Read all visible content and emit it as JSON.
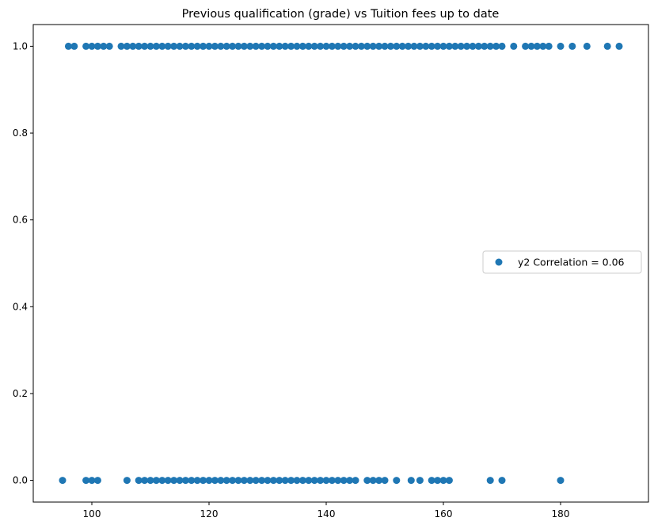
{
  "chart_data": {
    "type": "scatter",
    "title": "Previous qualification (grade) vs Tuition fees up to date",
    "xlabel": "",
    "ylabel": "",
    "xlim": [
      90,
      195
    ],
    "ylim": [
      -0.05,
      1.05
    ],
    "x_ticks": [
      100,
      120,
      140,
      160,
      180
    ],
    "y_ticks": [
      0.0,
      0.2,
      0.4,
      0.6,
      0.8,
      1.0
    ],
    "x_tick_labels": [
      "100",
      "120",
      "140",
      "160",
      "180"
    ],
    "y_tick_labels": [
      "0.0",
      "0.2",
      "0.4",
      "0.6",
      "0.8",
      "1.0"
    ],
    "grid": false,
    "legend": {
      "placement": "center-right"
    },
    "series": [
      {
        "name": "y2 Correlation = 0.06",
        "color": "#1f77b4",
        "points_y1_x": [
          96,
          97,
          99,
          100,
          101,
          102,
          103,
          105,
          106,
          107,
          108,
          109,
          110,
          111,
          112,
          113,
          114,
          115,
          116,
          117,
          118,
          119,
          120,
          121,
          122,
          123,
          124,
          125,
          126,
          127,
          128,
          129,
          130,
          131,
          132,
          133,
          134,
          135,
          136,
          137,
          138,
          139,
          140,
          141,
          142,
          143,
          144,
          145,
          146,
          147,
          148,
          149,
          150,
          151,
          152,
          153,
          154,
          155,
          156,
          157,
          158,
          159,
          160,
          161,
          162,
          163,
          164,
          165,
          166,
          167,
          168,
          169,
          170,
          172,
          174,
          175,
          176,
          177,
          178,
          180,
          182,
          184.5,
          188,
          190
        ],
        "points_y0_x": [
          95,
          99,
          100,
          101,
          106,
          108,
          109,
          110,
          111,
          112,
          113,
          114,
          115,
          116,
          117,
          118,
          119,
          120,
          121,
          122,
          123,
          124,
          125,
          126,
          127,
          128,
          129,
          130,
          131,
          132,
          133,
          134,
          135,
          136,
          137,
          138,
          139,
          140,
          141,
          142,
          143,
          144,
          145,
          147,
          148,
          149,
          150,
          152,
          154.5,
          156,
          158,
          159,
          160,
          161,
          168,
          170,
          180
        ]
      }
    ]
  }
}
